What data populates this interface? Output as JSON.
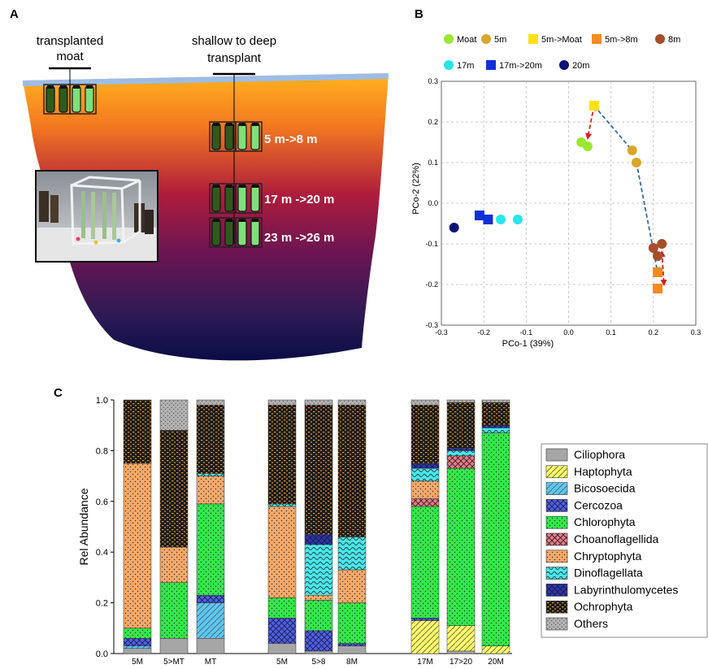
{
  "panels": {
    "a": {
      "letter": "A",
      "moat_label_line1": "transplanted",
      "moat_label_line2": "moat",
      "shallow_label_line1": "shallow to deep",
      "shallow_label_line2": "transplant",
      "depth_labels": [
        "5 m->8 m",
        "17 m ->20 m",
        "23 m ->26 m"
      ]
    },
    "b": {
      "letter": "B"
    },
    "c": {
      "letter": "C"
    }
  },
  "colors": {
    "moat": "#99e832",
    "5m": "#d9a62b",
    "5m_moat": "#ffe014",
    "5m_8m": "#f58b1f",
    "8m": "#a64e2a",
    "17m": "#26e6ea",
    "17m_20m": "#1130d6",
    "20m": "#0b1477",
    "arrow_blue": "#3a6aa5",
    "arrow_red": "#d61f1f"
  },
  "chart_data": [
    {
      "type": "scatter",
      "xlabel": "PCo-1 (39%)",
      "ylabel": "PCo-2 (22%)",
      "xlim": [
        -0.3,
        0.3
      ],
      "ylim": [
        -0.3,
        0.3
      ],
      "xticks": [
        "-0.3",
        "-0.2",
        "-0.1",
        "0.0",
        "0.1",
        "0.2",
        "0.3"
      ],
      "yticks": [
        "0.3",
        "0.2",
        "0.1",
        "0.0",
        "-0.1",
        "-0.2",
        "-0.3"
      ],
      "grid": true,
      "legend_position": "top",
      "series": [
        {
          "name": "Moat",
          "marker": "circle",
          "color": "#99e832",
          "points": [
            [
              0.03,
              0.15
            ],
            [
              0.045,
              0.14
            ]
          ]
        },
        {
          "name": "5m",
          "marker": "circle",
          "color": "#d9a62b",
          "points": [
            [
              0.15,
              0.13
            ],
            [
              0.16,
              0.1
            ]
          ]
        },
        {
          "name": "5m->Moat",
          "marker": "square",
          "color": "#ffe014",
          "points": [
            [
              0.06,
              0.24
            ]
          ]
        },
        {
          "name": "5m->8m",
          "marker": "square",
          "color": "#f58b1f",
          "points": [
            [
              0.21,
              -0.17
            ],
            [
              0.21,
              -0.21
            ]
          ]
        },
        {
          "name": "8m",
          "marker": "circle",
          "color": "#a64e2a",
          "points": [
            [
              0.2,
              -0.11
            ],
            [
              0.22,
              -0.1
            ],
            [
              0.21,
              -0.13
            ]
          ]
        },
        {
          "name": "17m",
          "marker": "circle",
          "color": "#26e6ea",
          "points": [
            [
              -0.16,
              -0.04
            ],
            [
              -0.12,
              -0.04
            ]
          ]
        },
        {
          "name": "17m->20m",
          "marker": "square",
          "color": "#1130d6",
          "points": [
            [
              -0.21,
              -0.03
            ],
            [
              -0.19,
              -0.04
            ]
          ]
        },
        {
          "name": "20m",
          "marker": "circle",
          "color": "#0b1477",
          "points": [
            [
              -0.27,
              -0.06
            ]
          ]
        }
      ],
      "arrows": [
        {
          "from": [
            0.06,
            0.24
          ],
          "to": [
            0.15,
            0.13
          ],
          "style": "dashed",
          "color": "#3a6aa5",
          "heads": "start"
        },
        {
          "from": [
            0.16,
            0.1
          ],
          "to": [
            0.21,
            -0.17
          ],
          "style": "dashed",
          "color": "#3a6aa5",
          "heads": "end"
        },
        {
          "from": [
            0.06,
            0.24
          ],
          "to": [
            0.045,
            0.16
          ],
          "style": "dashed",
          "color": "#d61f1f",
          "heads": "both"
        },
        {
          "from": [
            0.22,
            -0.12
          ],
          "to": [
            0.225,
            -0.2
          ],
          "style": "dashed",
          "color": "#d61f1f",
          "heads": "both"
        }
      ]
    },
    {
      "type": "bar",
      "stacked": true,
      "ylabel": "Rel Abundance",
      "ylim": [
        0,
        1.0
      ],
      "yticks": [
        "0.0",
        "0.2",
        "0.4",
        "0.6",
        "0.8",
        "1.0"
      ],
      "categories": [
        "5M",
        "5>MT",
        "MT",
        "5M",
        "5>8",
        "8M",
        "17M",
        "17>20",
        "20M"
      ],
      "groups": [
        [
          0,
          1,
          2
        ],
        [
          3,
          4,
          5
        ],
        [
          6,
          7,
          8
        ]
      ],
      "legend_position": "right",
      "series": [
        {
          "name": "Ciliophora",
          "color": "#a6a6a6",
          "pattern": "solid",
          "values": [
            0.02,
            0.06,
            0.06,
            0.04,
            0.01,
            0.03,
            0.0,
            0.01,
            0.0
          ]
        },
        {
          "name": "Haptophyta",
          "color": "#ffff66",
          "pattern": "diag",
          "values": [
            0.0,
            0.0,
            0.0,
            0.0,
            0.0,
            0.0,
            0.13,
            0.1,
            0.03
          ]
        },
        {
          "name": "Bicosoecida",
          "color": "#5bc8f5",
          "pattern": "diag",
          "values": [
            0.01,
            0.0,
            0.14,
            0.0,
            0.0,
            0.0,
            0.0,
            0.0,
            0.0
          ]
        },
        {
          "name": "Cercozoa",
          "color": "#4f5fe8",
          "pattern": "cross",
          "values": [
            0.03,
            0.0,
            0.03,
            0.1,
            0.08,
            0.01,
            0.01,
            0.0,
            0.0
          ]
        },
        {
          "name": "Chlorophyta",
          "color": "#33e84a",
          "pattern": "dots",
          "values": [
            0.04,
            0.22,
            0.36,
            0.08,
            0.12,
            0.16,
            0.44,
            0.62,
            0.84
          ]
        },
        {
          "name": "Choanoflagellida",
          "color": "#f07a7a",
          "pattern": "cross",
          "values": [
            0.0,
            0.0,
            0.0,
            0.0,
            0.0,
            0.0,
            0.03,
            0.05,
            0.0
          ]
        },
        {
          "name": "Chryptophyta",
          "color": "#f5a96a",
          "pattern": "dots",
          "values": [
            0.65,
            0.14,
            0.11,
            0.36,
            0.02,
            0.13,
            0.07,
            0.0,
            0.0
          ]
        },
        {
          "name": "Dinoflagellata",
          "color": "#47e8ec",
          "pattern": "wave",
          "values": [
            0.0,
            0.0,
            0.01,
            0.01,
            0.2,
            0.13,
            0.05,
            0.02,
            0.02
          ]
        },
        {
          "name": "Labyrinthulomycetes",
          "color": "#2c35a8",
          "pattern": "cross",
          "values": [
            0.0,
            0.0,
            0.0,
            0.0,
            0.04,
            0.0,
            0.02,
            0.01,
            0.01
          ]
        },
        {
          "name": "Ochrophyta",
          "color": "#1a1a1a",
          "pattern": "ochro",
          "values": [
            0.25,
            0.46,
            0.27,
            0.39,
            0.51,
            0.52,
            0.23,
            0.18,
            0.09
          ]
        },
        {
          "name": "Others",
          "color": "#b3b3b3",
          "pattern": "speck",
          "values": [
            0.0,
            0.12,
            0.02,
            0.02,
            0.02,
            0.02,
            0.02,
            0.01,
            0.01
          ]
        }
      ]
    }
  ]
}
